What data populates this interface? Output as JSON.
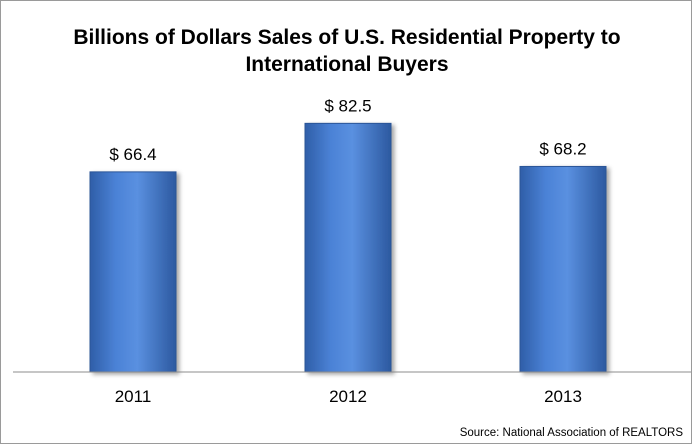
{
  "chart_data": {
    "type": "bar",
    "title": [
      "Billions of Dollars Sales of U.S. Residential Property to",
      "International Buyers"
    ],
    "categories": [
      "2011",
      "2012",
      "2013"
    ],
    "values": [
      66.4,
      82.5,
      68.2
    ],
    "value_labels": [
      "$ 66.4",
      "$ 82.5",
      "$ 68.2"
    ],
    "xlabel": "",
    "ylabel": "",
    "ylim": [
      0,
      100
    ],
    "grid": false,
    "legend": "none",
    "bar_color": "#3f75c8",
    "source": "Source: National Association of REALTORS"
  }
}
